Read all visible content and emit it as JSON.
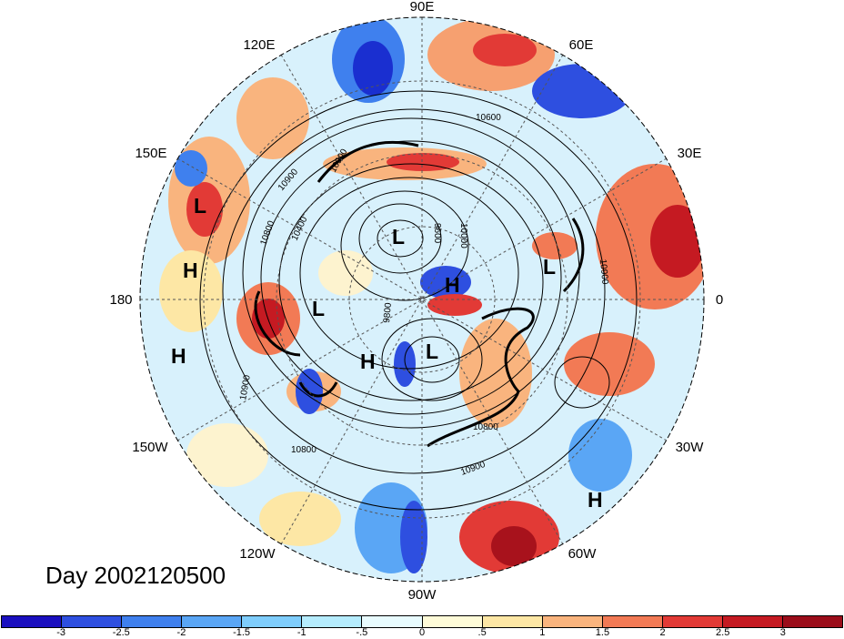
{
  "title": "Day 2002120500",
  "longitude_labels": {
    "e90": "90E",
    "e60": "60E",
    "e30": "30E",
    "zero": "0",
    "w30": "30W",
    "w60": "60W",
    "w90": "90W",
    "w120": "120W",
    "w150": "150W",
    "e180": "180",
    "e150": "150E",
    "e120": "120E"
  },
  "pressure_systems": [
    {
      "label": "L"
    },
    {
      "label": "H"
    },
    {
      "label": "H"
    },
    {
      "label": "L"
    },
    {
      "label": "H"
    },
    {
      "label": "L"
    },
    {
      "label": "H"
    },
    {
      "label": "L"
    },
    {
      "label": "L"
    },
    {
      "label": "H"
    }
  ],
  "contour_labels": [
    "10800",
    "10900",
    "10400",
    "10600",
    "10000",
    "9800",
    "9600",
    "10900",
    "10800",
    "10900",
    "10800",
    "10900",
    "10900"
  ],
  "colorbar": {
    "colors": [
      "#1a0fbf",
      "#2e4fe0",
      "#3f80ee",
      "#5aa6f5",
      "#7fcdfc",
      "#b5ecfd",
      "#e8fbfe",
      "#fefbd8",
      "#fde7a5",
      "#f9b47e",
      "#f27a55",
      "#e23a36",
      "#c51a22",
      "#9b0d1a"
    ],
    "ticks": [
      "-3",
      "-2.5",
      "-2",
      "-1.5",
      "-1",
      "-.5",
      "0",
      ".5",
      "1",
      "1.5",
      "2",
      "2.5",
      "3"
    ]
  },
  "colors": {
    "deep_blue": "#1a2fd0",
    "blue": "#4f8ef2",
    "light_blue": "#a9dcfb",
    "cream": "#fdf3cf",
    "orange": "#f6a070",
    "red": "#de3b33",
    "dark_red": "#a8121c"
  }
}
